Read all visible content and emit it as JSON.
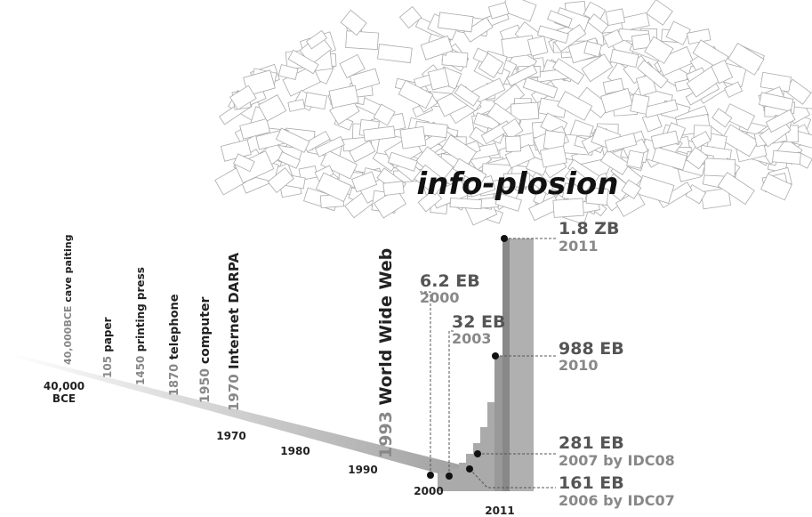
{
  "logo": "info-plosion",
  "milestones": [
    {
      "year": "40,000BCE",
      "label": "cave paiting"
    },
    {
      "year": "105",
      "label": "paper"
    },
    {
      "year": "1450",
      "label": "printing press"
    },
    {
      "year": "1870",
      "label": "telephone"
    },
    {
      "year": "1950",
      "label": "computer"
    },
    {
      "year": "1970",
      "label": "Internet DARPA"
    },
    {
      "year": "1993",
      "label": "World Wide Web"
    }
  ],
  "timeline": {
    "start": [
      "40,000",
      "BCE"
    ],
    "years": [
      "1970",
      "1980",
      "1990",
      "2000",
      "2011"
    ]
  },
  "annotations": [
    {
      "amount": "1.8 ZB",
      "year": "2011"
    },
    {
      "amount": "6.2 EB",
      "year": "2000"
    },
    {
      "amount": "32 EB",
      "year": "2003"
    },
    {
      "amount": "988 EB",
      "year": "2010"
    },
    {
      "amount": "281 EB",
      "year": "2007 by IDC08"
    },
    {
      "amount": "161 EB",
      "year": "2006 by IDC07"
    }
  ]
}
